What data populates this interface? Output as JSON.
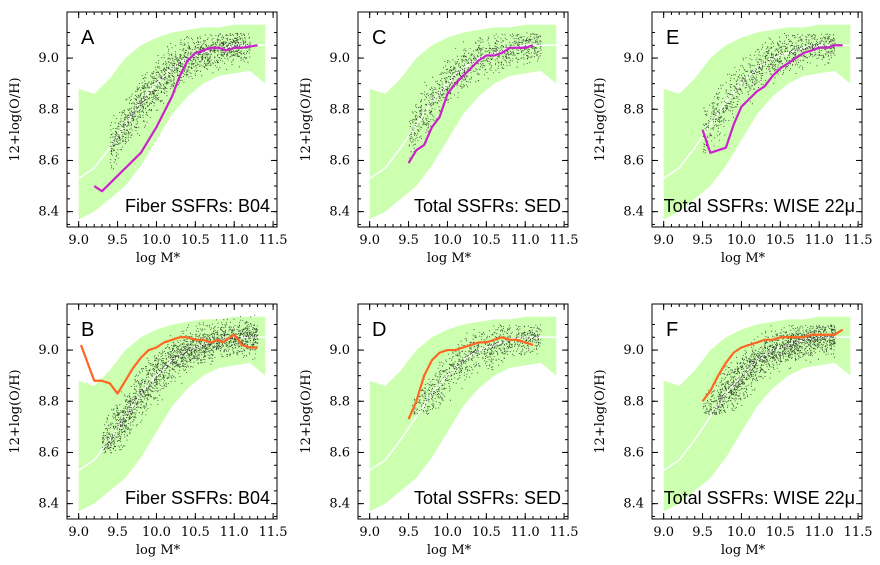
{
  "figure": {
    "background": "#ffffff",
    "band_color": "#ccffb0",
    "median_line_color": "#ffffff",
    "scatter_color": "#000000",
    "top_row_line_color": "#cc22cc",
    "bottom_row_line_color": "#ff6622"
  },
  "chart_data": [
    {
      "type": "scatter",
      "panel": "A",
      "annotation": "Fiber SSFRs: B04",
      "xlabel": "log M*",
      "ylabel": "12+log(O/H)",
      "xlim": [
        8.85,
        11.55
      ],
      "ylim": [
        8.34,
        9.18
      ],
      "xticks": [
        "9.0",
        "9.5",
        "10.0",
        "10.5",
        "11.0",
        "11.5"
      ],
      "yticks": [
        "8.4",
        "8.6",
        "8.8",
        "9.0"
      ],
      "scatter_cloud": {
        "x_range": [
          9.4,
          11.2
        ],
        "y_range": [
          8.45,
          9.1
        ],
        "n_points": 1500
      },
      "band": {
        "x": [
          9.0,
          9.2,
          9.4,
          9.6,
          9.8,
          10.0,
          10.2,
          10.4,
          10.6,
          10.8,
          11.0,
          11.2,
          11.4
        ],
        "upper": [
          8.88,
          8.86,
          8.92,
          9.0,
          9.05,
          9.08,
          9.1,
          9.11,
          9.12,
          9.12,
          9.13,
          9.13,
          9.13
        ],
        "lower": [
          8.37,
          8.4,
          8.45,
          8.5,
          8.58,
          8.68,
          8.78,
          8.85,
          8.9,
          8.93,
          8.94,
          8.95,
          8.9
        ]
      },
      "median": {
        "x": [
          9.0,
          9.2,
          9.4,
          9.6,
          9.8,
          10.0,
          10.2,
          10.4,
          10.6,
          10.8,
          11.0,
          11.2,
          11.4
        ],
        "y": [
          8.53,
          8.57,
          8.65,
          8.74,
          8.83,
          8.9,
          8.96,
          9.0,
          9.02,
          9.04,
          9.05,
          9.05,
          9.05
        ]
      },
      "series": [
        {
          "x": [
            9.2,
            9.3,
            9.5,
            9.7,
            9.8,
            9.9,
            10.0,
            10.2,
            10.3,
            10.4,
            10.5,
            10.6,
            10.7,
            10.8,
            10.9,
            11.0,
            11.1,
            11.3
          ],
          "y": [
            8.5,
            8.48,
            8.54,
            8.6,
            8.63,
            8.68,
            8.73,
            8.85,
            8.93,
            8.99,
            9.02,
            9.03,
            9.04,
            9.04,
            9.03,
            9.04,
            9.04,
            9.05
          ]
        }
      ]
    },
    {
      "type": "scatter",
      "panel": "C",
      "annotation": "Total SSFRs: SED",
      "xlabel": "log M*",
      "ylabel": "12+log(O/H)",
      "xlim": [
        8.85,
        11.55
      ],
      "ylim": [
        8.34,
        9.18
      ],
      "xticks": [
        "9.0",
        "9.5",
        "10.0",
        "10.5",
        "11.0",
        "11.5"
      ],
      "yticks": [
        "8.4",
        "8.6",
        "8.8",
        "9.0"
      ],
      "scatter_cloud": {
        "x_range": [
          9.5,
          11.2
        ],
        "y_range": [
          8.55,
          9.1
        ],
        "n_points": 1000
      },
      "band": {
        "x": [
          9.0,
          9.2,
          9.4,
          9.6,
          9.8,
          10.0,
          10.2,
          10.4,
          10.6,
          10.8,
          11.0,
          11.2,
          11.4
        ],
        "upper": [
          8.88,
          8.86,
          8.92,
          9.0,
          9.05,
          9.08,
          9.1,
          9.11,
          9.12,
          9.12,
          9.13,
          9.13,
          9.13
        ],
        "lower": [
          8.37,
          8.4,
          8.45,
          8.5,
          8.58,
          8.68,
          8.78,
          8.85,
          8.9,
          8.93,
          8.94,
          8.95,
          8.9
        ]
      },
      "median": {
        "x": [
          9.0,
          9.2,
          9.4,
          9.6,
          9.8,
          10.0,
          10.2,
          10.4,
          10.6,
          10.8,
          11.0,
          11.2,
          11.4
        ],
        "y": [
          8.53,
          8.57,
          8.65,
          8.74,
          8.83,
          8.9,
          8.96,
          9.0,
          9.02,
          9.04,
          9.05,
          9.05,
          9.05
        ]
      },
      "series": [
        {
          "x": [
            9.5,
            9.6,
            9.7,
            9.8,
            9.9,
            10.0,
            10.1,
            10.2,
            10.3,
            10.4,
            10.5,
            10.6,
            10.7,
            10.8,
            10.9,
            11.0,
            11.1
          ],
          "y": [
            8.59,
            8.64,
            8.66,
            8.73,
            8.77,
            8.86,
            8.9,
            8.93,
            8.96,
            8.99,
            9.01,
            9.01,
            9.02,
            9.04,
            9.04,
            9.04,
            9.05
          ]
        }
      ]
    },
    {
      "type": "scatter",
      "panel": "E",
      "annotation": "Total SSFRs: WISE 22μ",
      "xlabel": "log M*",
      "ylabel": "12+log(O/H)",
      "xlim": [
        8.85,
        11.55
      ],
      "ylim": [
        8.34,
        9.18
      ],
      "xticks": [
        "9.0",
        "9.5",
        "10.0",
        "10.5",
        "11.0",
        "11.5"
      ],
      "yticks": [
        "8.4",
        "8.6",
        "8.8",
        "9.0"
      ],
      "scatter_cloud": {
        "x_range": [
          9.5,
          11.2
        ],
        "y_range": [
          8.55,
          9.1
        ],
        "n_points": 1000
      },
      "band": {
        "x": [
          9.0,
          9.2,
          9.4,
          9.6,
          9.8,
          10.0,
          10.2,
          10.4,
          10.6,
          10.8,
          11.0,
          11.2,
          11.4
        ],
        "upper": [
          8.88,
          8.86,
          8.92,
          9.0,
          9.05,
          9.08,
          9.1,
          9.11,
          9.12,
          9.12,
          9.13,
          9.13,
          9.13
        ],
        "lower": [
          8.37,
          8.4,
          8.45,
          8.5,
          8.58,
          8.68,
          8.78,
          8.85,
          8.9,
          8.93,
          8.94,
          8.95,
          8.9
        ]
      },
      "median": {
        "x": [
          9.0,
          9.2,
          9.4,
          9.6,
          9.8,
          10.0,
          10.2,
          10.4,
          10.6,
          10.8,
          11.0,
          11.2,
          11.4
        ],
        "y": [
          8.53,
          8.57,
          8.65,
          8.74,
          8.83,
          8.9,
          8.96,
          9.0,
          9.02,
          9.04,
          9.05,
          9.05,
          9.05
        ]
      },
      "series": [
        {
          "x": [
            9.5,
            9.6,
            9.8,
            9.9,
            10.0,
            10.1,
            10.2,
            10.3,
            10.4,
            10.5,
            10.6,
            10.7,
            10.8,
            10.9,
            11.0,
            11.1,
            11.2,
            11.3
          ],
          "y": [
            8.72,
            8.63,
            8.65,
            8.74,
            8.81,
            8.84,
            8.87,
            8.89,
            8.93,
            8.96,
            8.98,
            9.0,
            9.02,
            9.03,
            9.04,
            9.04,
            9.05,
            9.05
          ]
        }
      ]
    },
    {
      "type": "scatter",
      "panel": "B",
      "annotation": "Fiber SSFRs: B04",
      "xlabel": "log M*",
      "ylabel": "12+log(O/H)",
      "xlim": [
        8.85,
        11.55
      ],
      "ylim": [
        8.34,
        9.18
      ],
      "xticks": [
        "9.0",
        "9.5",
        "10.0",
        "10.5",
        "11.0",
        "11.5"
      ],
      "yticks": [
        "8.4",
        "8.6",
        "8.8",
        "9.0"
      ],
      "scatter_cloud": {
        "x_range": [
          9.3,
          11.3
        ],
        "y_range": [
          8.6,
          9.14
        ],
        "n_points": 2000
      },
      "band": {
        "x": [
          9.0,
          9.2,
          9.4,
          9.6,
          9.8,
          10.0,
          10.2,
          10.4,
          10.6,
          10.8,
          11.0,
          11.2,
          11.4
        ],
        "upper": [
          8.88,
          8.86,
          8.92,
          9.0,
          9.05,
          9.08,
          9.1,
          9.11,
          9.12,
          9.12,
          9.13,
          9.13,
          9.13
        ],
        "lower": [
          8.37,
          8.4,
          8.45,
          8.5,
          8.58,
          8.68,
          8.78,
          8.85,
          8.9,
          8.93,
          8.94,
          8.95,
          8.9
        ]
      },
      "median": {
        "x": [
          9.0,
          9.2,
          9.4,
          9.6,
          9.8,
          10.0,
          10.2,
          10.4,
          10.6,
          10.8,
          11.0,
          11.2,
          11.4
        ],
        "y": [
          8.53,
          8.57,
          8.65,
          8.74,
          8.83,
          8.9,
          8.96,
          9.0,
          9.02,
          9.04,
          9.05,
          9.05,
          9.05
        ]
      },
      "series": [
        {
          "x": [
            9.03,
            9.2,
            9.3,
            9.4,
            9.5,
            9.6,
            9.7,
            9.8,
            9.9,
            10.0,
            10.1,
            10.2,
            10.3,
            10.4,
            10.5,
            10.6,
            10.7,
            10.8,
            10.85,
            10.9,
            11.0,
            11.1,
            11.2,
            11.3
          ],
          "y": [
            9.02,
            8.88,
            8.88,
            8.87,
            8.83,
            8.88,
            8.93,
            8.97,
            9.0,
            9.01,
            9.03,
            9.04,
            9.05,
            9.05,
            9.04,
            9.04,
            9.03,
            9.04,
            9.03,
            9.04,
            9.06,
            9.02,
            9.01,
            9.01
          ]
        }
      ]
    },
    {
      "type": "scatter",
      "panel": "D",
      "annotation": "Total SSFRs: SED",
      "xlabel": "log M*",
      "ylabel": "12+log(O/H)",
      "xlim": [
        8.85,
        11.55
      ],
      "ylim": [
        8.34,
        9.18
      ],
      "xticks": [
        "9.0",
        "9.5",
        "10.0",
        "10.5",
        "11.0",
        "11.5"
      ],
      "yticks": [
        "8.4",
        "8.6",
        "8.8",
        "9.0"
      ],
      "scatter_cloud": {
        "x_range": [
          9.5,
          11.2
        ],
        "y_range": [
          8.75,
          9.1
        ],
        "n_points": 1000
      },
      "band": {
        "x": [
          9.0,
          9.2,
          9.4,
          9.6,
          9.8,
          10.0,
          10.2,
          10.4,
          10.6,
          10.8,
          11.0,
          11.2,
          11.4
        ],
        "upper": [
          8.88,
          8.86,
          8.92,
          9.0,
          9.05,
          9.08,
          9.1,
          9.11,
          9.12,
          9.12,
          9.13,
          9.13,
          9.13
        ],
        "lower": [
          8.37,
          8.4,
          8.45,
          8.5,
          8.58,
          8.68,
          8.78,
          8.85,
          8.9,
          8.93,
          8.94,
          8.95,
          8.9
        ]
      },
      "median": {
        "x": [
          9.0,
          9.2,
          9.4,
          9.6,
          9.8,
          10.0,
          10.2,
          10.4,
          10.6,
          10.8,
          11.0,
          11.2,
          11.4
        ],
        "y": [
          8.53,
          8.57,
          8.65,
          8.74,
          8.83,
          8.9,
          8.96,
          9.0,
          9.02,
          9.04,
          9.05,
          9.05,
          9.05
        ]
      },
      "series": [
        {
          "x": [
            9.5,
            9.6,
            9.7,
            9.8,
            9.9,
            10.0,
            10.1,
            10.2,
            10.3,
            10.4,
            10.5,
            10.6,
            10.7,
            10.8,
            10.9,
            11.0,
            11.1
          ],
          "y": [
            8.73,
            8.8,
            8.9,
            8.96,
            8.99,
            9.0,
            9.0,
            9.01,
            9.02,
            9.03,
            9.03,
            9.04,
            9.05,
            9.04,
            9.04,
            9.03,
            9.02
          ]
        }
      ]
    },
    {
      "type": "scatter",
      "panel": "F",
      "annotation": "Total SSFRs: WISE 22μ",
      "xlabel": "log M*",
      "ylabel": "12+log(O/H)",
      "xlim": [
        8.85,
        11.55
      ],
      "ylim": [
        8.34,
        9.18
      ],
      "xticks": [
        "9.0",
        "9.5",
        "10.0",
        "10.5",
        "11.0",
        "11.5"
      ],
      "yticks": [
        "8.4",
        "8.6",
        "8.8",
        "9.0"
      ],
      "scatter_cloud": {
        "x_range": [
          9.5,
          11.2
        ],
        "y_range": [
          8.75,
          9.1
        ],
        "n_points": 1800
      },
      "band": {
        "x": [
          9.0,
          9.2,
          9.4,
          9.6,
          9.8,
          10.0,
          10.2,
          10.4,
          10.6,
          10.8,
          11.0,
          11.2,
          11.4
        ],
        "upper": [
          8.88,
          8.86,
          8.92,
          9.0,
          9.05,
          9.08,
          9.1,
          9.11,
          9.12,
          9.12,
          9.13,
          9.13,
          9.13
        ],
        "lower": [
          8.37,
          8.4,
          8.45,
          8.5,
          8.58,
          8.68,
          8.78,
          8.85,
          8.9,
          8.93,
          8.94,
          8.95,
          8.9
        ]
      },
      "median": {
        "x": [
          9.0,
          9.2,
          9.4,
          9.6,
          9.8,
          10.0,
          10.2,
          10.4,
          10.6,
          10.8,
          11.0,
          11.2,
          11.4
        ],
        "y": [
          8.53,
          8.57,
          8.65,
          8.74,
          8.83,
          8.9,
          8.96,
          9.0,
          9.02,
          9.04,
          9.05,
          9.05,
          9.05
        ]
      },
      "series": [
        {
          "x": [
            9.5,
            9.6,
            9.7,
            9.8,
            9.9,
            10.0,
            10.1,
            10.2,
            10.3,
            10.4,
            10.5,
            10.6,
            10.7,
            10.8,
            10.9,
            11.0,
            11.1,
            11.2,
            11.3
          ],
          "y": [
            8.8,
            8.84,
            8.9,
            8.95,
            8.99,
            9.01,
            9.02,
            9.03,
            9.04,
            9.04,
            9.05,
            9.05,
            9.05,
            9.05,
            9.06,
            9.06,
            9.06,
            9.06,
            9.08
          ]
        }
      ]
    }
  ]
}
